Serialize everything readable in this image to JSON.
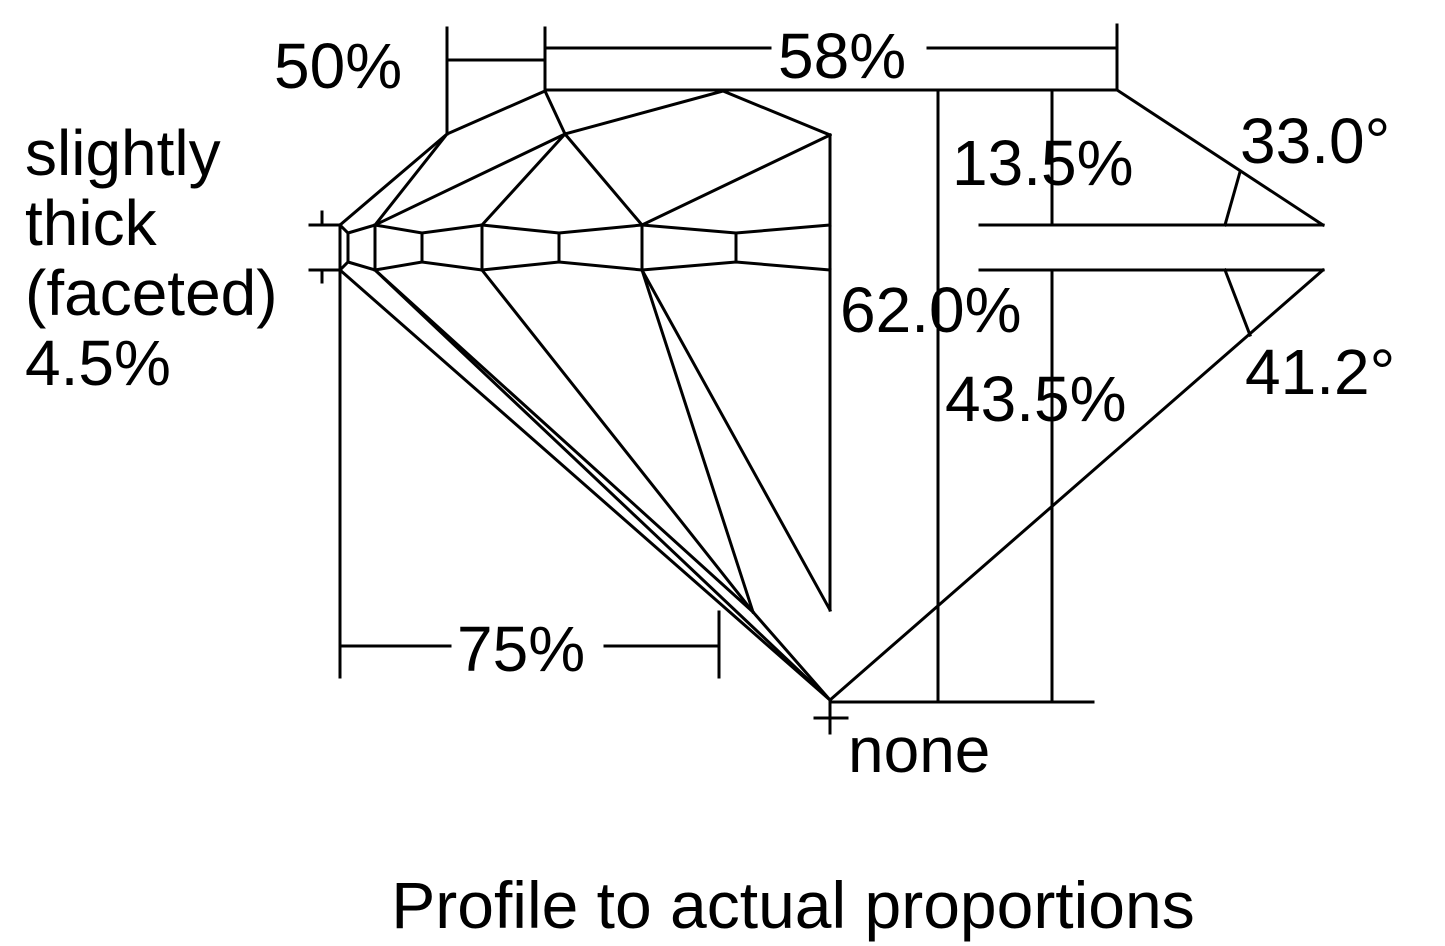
{
  "diagram": {
    "title": "Profile to actual proportions",
    "girdle": {
      "lines": [
        "slightly",
        "thick",
        "(faceted)",
        "4.5%"
      ]
    },
    "measurements": {
      "lower_girdle": "50%",
      "table": "58%",
      "crown_height": "13.5%",
      "crown_angle": "33.0°",
      "total_depth": "62.0%",
      "pavilion_angle": "41.2°",
      "pavilion_depth": "43.5%",
      "star_length": "75%",
      "culet": "none"
    },
    "colors": {
      "stroke": "#000000",
      "background": "#ffffff"
    }
  }
}
